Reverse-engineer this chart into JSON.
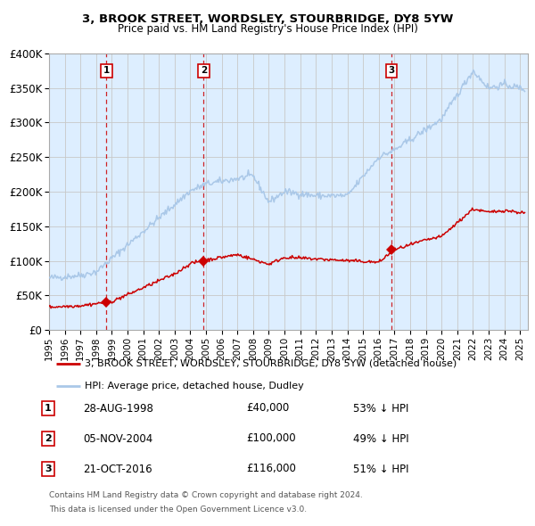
{
  "title1": "3, BROOK STREET, WORDSLEY, STOURBRIDGE, DY8 5YW",
  "title2": "Price paid vs. HM Land Registry's House Price Index (HPI)",
  "legend_line1": "3, BROOK STREET, WORDSLEY, STOURBRIDGE, DY8 5YW (detached house)",
  "legend_line2": "HPI: Average price, detached house, Dudley",
  "footer1": "Contains HM Land Registry data © Crown copyright and database right 2024.",
  "footer2": "This data is licensed under the Open Government Licence v3.0.",
  "transactions": [
    {
      "num": "1",
      "date": "28-AUG-1998",
      "price": "£40,000",
      "hpi_pct": "53% ↓ HPI",
      "year": 1998.66,
      "val": 40000
    },
    {
      "num": "2",
      "date": "05-NOV-2004",
      "price": "£100,000",
      "hpi_pct": "49% ↓ HPI",
      "year": 2004.85,
      "val": 100000
    },
    {
      "num": "3",
      "date": "21-OCT-2016",
      "price": "£116,000",
      "hpi_pct": "51% ↓ HPI",
      "year": 2016.8,
      "val": 116000
    }
  ],
  "hpi_color": "#aac8e8",
  "price_color": "#cc0000",
  "bg_color": "#ddeeff",
  "grid_color": "#c8c8c8",
  "vline_color": "#cc0000",
  "xlim": [
    1995,
    2025.5
  ],
  "ylim": [
    0,
    400000
  ],
  "yticks": [
    0,
    50000,
    100000,
    150000,
    200000,
    250000,
    300000,
    350000,
    400000
  ],
  "ytick_labels": [
    "£0",
    "£50K",
    "£100K",
    "£150K",
    "£200K",
    "£250K",
    "£300K",
    "£350K",
    "£400K"
  ]
}
